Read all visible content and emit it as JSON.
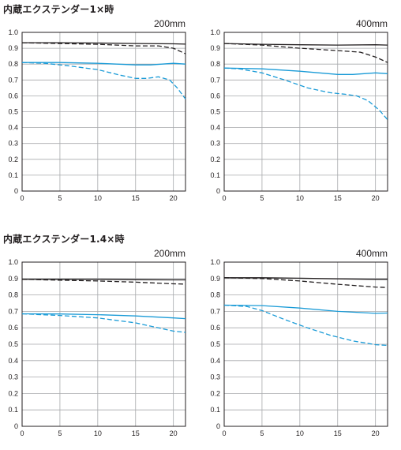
{
  "sections": [
    {
      "title": "内蔵エクステンダー1×時"
    },
    {
      "title": "内蔵エクステンダー1.4×時"
    }
  ],
  "colors": {
    "black_series": "#231f20",
    "blue_series": "#1a9bd7",
    "grid": "#a7a9ac",
    "frame": "#231f20"
  },
  "chart_data": [
    {
      "type": "line",
      "title": "200mm",
      "xticks": [
        0,
        5,
        10,
        15,
        20
      ],
      "yticks": [
        "0",
        "0.1",
        "0.2",
        "0.3",
        "0.4",
        "0.5",
        "0.6",
        "0.7",
        "0.8",
        "0.9",
        "1.0"
      ],
      "xlim": [
        0,
        21.6
      ],
      "ylim": [
        0,
        1.0
      ],
      "grid": true,
      "series": [
        {
          "color": "black",
          "style": "solid",
          "x": [
            0,
            5,
            10,
            15,
            20,
            21.6
          ],
          "y": [
            0.935,
            0.935,
            0.933,
            0.93,
            0.928,
            0.926
          ]
        },
        {
          "color": "black",
          "style": "dashed",
          "x": [
            0,
            5,
            10,
            15,
            18,
            20,
            21.6
          ],
          "y": [
            0.935,
            0.93,
            0.925,
            0.915,
            0.915,
            0.9,
            0.865
          ]
        },
        {
          "color": "blue",
          "style": "solid",
          "x": [
            0,
            5,
            10,
            15,
            17,
            20,
            21.6
          ],
          "y": [
            0.81,
            0.81,
            0.805,
            0.795,
            0.795,
            0.805,
            0.8
          ]
        },
        {
          "color": "blue",
          "style": "dashed",
          "x": [
            0,
            3,
            6,
            10,
            13,
            15,
            16.5,
            18,
            19.5,
            20.5,
            21.6
          ],
          "y": [
            0.81,
            0.805,
            0.79,
            0.765,
            0.73,
            0.71,
            0.71,
            0.72,
            0.7,
            0.65,
            0.58
          ]
        }
      ]
    },
    {
      "type": "line",
      "title": "400mm",
      "xticks": [
        0,
        5,
        10,
        15,
        20
      ],
      "yticks": [
        "0",
        "0.1",
        "0.2",
        "0.3",
        "0.4",
        "0.5",
        "0.6",
        "0.7",
        "0.8",
        "0.9",
        "1.0"
      ],
      "xlim": [
        0,
        21.6
      ],
      "ylim": [
        0,
        1.0
      ],
      "grid": true,
      "series": [
        {
          "color": "black",
          "style": "solid",
          "x": [
            0,
            5,
            10,
            15,
            20,
            21.6
          ],
          "y": [
            0.93,
            0.925,
            0.922,
            0.92,
            0.922,
            0.92
          ]
        },
        {
          "color": "black",
          "style": "dashed",
          "x": [
            0,
            5,
            10,
            15,
            18,
            20,
            21.6
          ],
          "y": [
            0.93,
            0.92,
            0.9,
            0.885,
            0.875,
            0.845,
            0.81
          ]
        },
        {
          "color": "blue",
          "style": "solid",
          "x": [
            0,
            5,
            10,
            15,
            17,
            20,
            21.6
          ],
          "y": [
            0.775,
            0.77,
            0.755,
            0.735,
            0.735,
            0.745,
            0.74
          ]
        },
        {
          "color": "blue",
          "style": "dashed",
          "x": [
            0,
            2,
            5,
            8,
            11,
            14,
            16,
            17.5,
            19,
            20.5,
            21.6
          ],
          "y": [
            0.775,
            0.77,
            0.745,
            0.7,
            0.65,
            0.62,
            0.61,
            0.6,
            0.57,
            0.51,
            0.45
          ]
        }
      ]
    },
    {
      "type": "line",
      "title": "200mm",
      "xticks": [
        0,
        5,
        10,
        15,
        20
      ],
      "yticks": [
        "0",
        "0.1",
        "0.2",
        "0.3",
        "0.4",
        "0.5",
        "0.6",
        "0.7",
        "0.8",
        "0.9",
        "1.0"
      ],
      "xlim": [
        0,
        21.6
      ],
      "ylim": [
        0,
        1.0
      ],
      "grid": true,
      "series": [
        {
          "color": "black",
          "style": "solid",
          "x": [
            0,
            5,
            10,
            15,
            20,
            21.6
          ],
          "y": [
            0.895,
            0.895,
            0.895,
            0.893,
            0.892,
            0.892
          ]
        },
        {
          "color": "black",
          "style": "dashed",
          "x": [
            0,
            5,
            10,
            15,
            20,
            21.6
          ],
          "y": [
            0.895,
            0.89,
            0.885,
            0.878,
            0.868,
            0.866
          ]
        },
        {
          "color": "blue",
          "style": "solid",
          "x": [
            0,
            5,
            10,
            15,
            20,
            21.6
          ],
          "y": [
            0.685,
            0.684,
            0.68,
            0.672,
            0.66,
            0.656
          ]
        },
        {
          "color": "blue",
          "style": "dashed",
          "x": [
            0,
            5,
            10,
            15,
            20,
            21.6
          ],
          "y": [
            0.685,
            0.675,
            0.66,
            0.63,
            0.58,
            0.572
          ]
        }
      ]
    },
    {
      "type": "line",
      "title": "400mm",
      "xticks": [
        0,
        5,
        10,
        15,
        20
      ],
      "yticks": [
        "0",
        "0.1",
        "0.2",
        "0.3",
        "0.4",
        "0.5",
        "0.6",
        "0.7",
        "0.8",
        "0.9",
        "1.0"
      ],
      "xlim": [
        0,
        21.6
      ],
      "ylim": [
        0,
        1.0
      ],
      "grid": true,
      "series": [
        {
          "color": "black",
          "style": "solid",
          "x": [
            0,
            5,
            10,
            15,
            20,
            21.6
          ],
          "y": [
            0.905,
            0.905,
            0.902,
            0.898,
            0.895,
            0.895
          ]
        },
        {
          "color": "black",
          "style": "dashed",
          "x": [
            0,
            5,
            10,
            15,
            20,
            21.6
          ],
          "y": [
            0.905,
            0.9,
            0.885,
            0.865,
            0.848,
            0.845
          ]
        },
        {
          "color": "blue",
          "style": "solid",
          "x": [
            0,
            5,
            10,
            15,
            20,
            21.6
          ],
          "y": [
            0.738,
            0.735,
            0.72,
            0.7,
            0.688,
            0.69
          ]
        },
        {
          "color": "blue",
          "style": "dashed",
          "x": [
            0,
            3,
            5,
            8,
            11,
            14,
            17,
            20,
            21.6
          ],
          "y": [
            0.738,
            0.73,
            0.705,
            0.65,
            0.6,
            0.555,
            0.52,
            0.497,
            0.493
          ]
        }
      ]
    }
  ]
}
